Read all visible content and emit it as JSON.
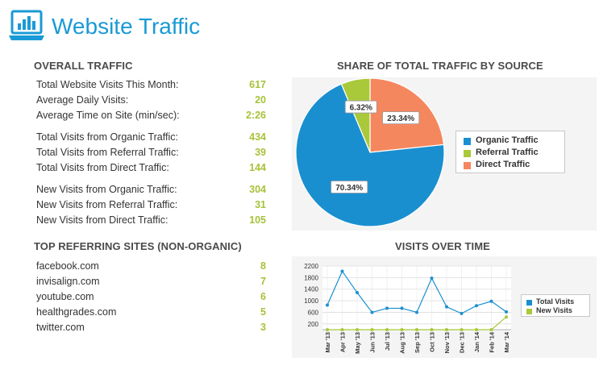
{
  "header": {
    "title": "Website Traffic",
    "icon": "laptop-chart-icon",
    "accent": "#1a9ad6"
  },
  "overall_traffic": {
    "heading": "OVERALL TRAFFIC",
    "groups": [
      [
        {
          "label": "Total Website Visits This Month:",
          "value": "617"
        },
        {
          "label": "Average Daily Visits:",
          "value": "20"
        },
        {
          "label": "Average Time on Site (min/sec):",
          "value": "2:26"
        }
      ],
      [
        {
          "label": "Total Visits from Organic Traffic:",
          "value": "434"
        },
        {
          "label": "Total Visits from Referral Traffic:",
          "value": "39"
        },
        {
          "label": "Total Visits from Direct Traffic:",
          "value": "144"
        }
      ],
      [
        {
          "label": "New Visits from Organic Traffic:",
          "value": "304"
        },
        {
          "label": "New Visits from Referral Traffic:",
          "value": "31"
        },
        {
          "label": "New Visits from Direct Traffic:",
          "value": "105"
        }
      ]
    ]
  },
  "top_referring": {
    "heading": "TOP REFERRING SITES (NON-ORGANIC)",
    "sites": [
      {
        "label": "facebook.com",
        "value": "8"
      },
      {
        "label": "invisalign.com",
        "value": "7"
      },
      {
        "label": "youtube.com",
        "value": "6"
      },
      {
        "label": "healthgrades.com",
        "value": "5"
      },
      {
        "label": "twitter.com",
        "value": "3"
      }
    ]
  },
  "colors": {
    "value_green": "#a7c23a",
    "organic": "#1a8fd0",
    "referral": "#a9c93a",
    "direct": "#f5875e"
  },
  "chart_data": [
    {
      "type": "pie",
      "title": "SHARE OF TOTAL TRAFFIC BY SOURCE",
      "categories": [
        "Organic Traffic",
        "Referral Traffic",
        "Direct Traffic"
      ],
      "values": [
        70.34,
        6.32,
        23.34
      ],
      "labels": [
        "70.34%",
        "6.32%",
        "23.34%"
      ],
      "colors": [
        "#1a8fd0",
        "#a9c93a",
        "#f5875e"
      ],
      "legend": "right"
    },
    {
      "type": "line",
      "title": "VISITS OVER TIME",
      "x": [
        "Mar '13",
        "Apr '13",
        "May '13",
        "Jun '13",
        "Jul '13",
        "Aug '13",
        "Sep '13",
        "Oct '13",
        "Nov '13",
        "Dec '13",
        "Jan '14",
        "Feb '14",
        "Mar '14"
      ],
      "series": [
        {
          "name": "Total Visits",
          "color": "#1a8fd0",
          "values": [
            850,
            2020,
            1280,
            600,
            740,
            740,
            600,
            1780,
            790,
            560,
            830,
            980,
            617
          ]
        },
        {
          "name": "New Visits",
          "color": "#a9c93a",
          "values": [
            0,
            0,
            0,
            0,
            0,
            0,
            0,
            0,
            0,
            0,
            0,
            0,
            440
          ]
        }
      ],
      "ylim": [
        0,
        2200
      ],
      "yticks": [
        "2200",
        "1800",
        "1400",
        "1000",
        "600",
        "200"
      ],
      "ytick_values": [
        2200,
        1800,
        1400,
        1000,
        600,
        200
      ],
      "grid": true,
      "legend": "right"
    }
  ]
}
